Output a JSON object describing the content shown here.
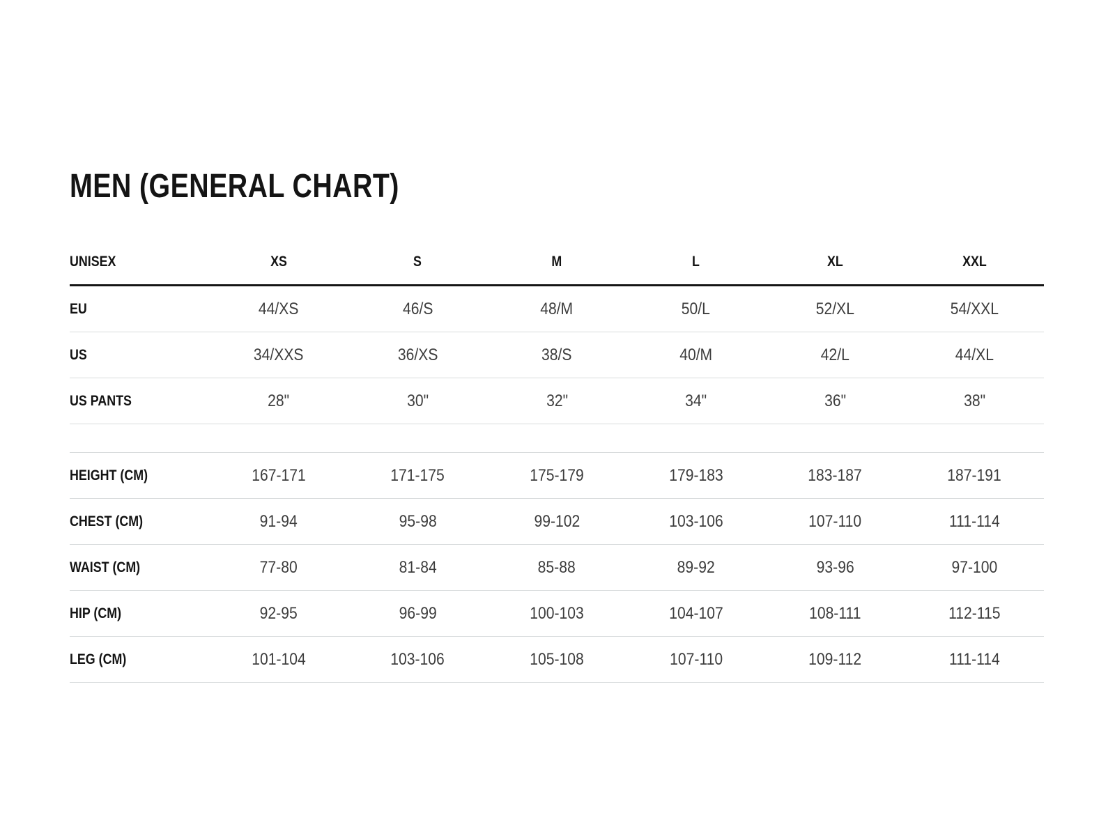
{
  "chart_data": {
    "type": "table",
    "title": "MEN (GENERAL CHART)",
    "columns": [
      "UNISEX",
      "XS",
      "S",
      "M",
      "L",
      "XL",
      "XXL"
    ],
    "rows": [
      {
        "label": "EU",
        "values": [
          "44/XS",
          "46/S",
          "48/M",
          "50/L",
          "52/XL",
          "54/XXL"
        ]
      },
      {
        "label": "US",
        "values": [
          "34/XXS",
          "36/XS",
          "38/S",
          "40/M",
          "42/L",
          "44/XL"
        ]
      },
      {
        "label": "US PANTS",
        "values": [
          "28\"",
          "30\"",
          "32\"",
          "34\"",
          "36\"",
          "38\""
        ]
      },
      {
        "label": "HEIGHT (CM)",
        "values": [
          "167-171",
          "171-175",
          "175-179",
          "179-183",
          "183-187",
          "187-191"
        ]
      },
      {
        "label": "CHEST (CM)",
        "values": [
          "91-94",
          "95-98",
          "99-102",
          "103-106",
          "107-110",
          "111-114"
        ]
      },
      {
        "label": "WAIST (CM)",
        "values": [
          "77-80",
          "81-84",
          "85-88",
          "89-92",
          "93-96",
          "97-100"
        ]
      },
      {
        "label": "HIP (CM)",
        "values": [
          "92-95",
          "96-99",
          "100-103",
          "104-107",
          "108-111",
          "112-115"
        ]
      },
      {
        "label": "LEG (CM)",
        "values": [
          "101-104",
          "103-106",
          "105-108",
          "107-110",
          "109-112",
          "111-114"
        ]
      }
    ],
    "layout_hints": {
      "header_rule": "thick-black",
      "row_rules": "thin-light-gray",
      "spacer_after_row_index": 2,
      "first_column_align": "left",
      "data_columns_align": "center"
    },
    "colors": {
      "background": "#ffffff",
      "text_primary": "#141414",
      "text_values": "#3d3d3d",
      "rule_heavy": "#161616",
      "rule_light": "#d8dbdc"
    }
  }
}
